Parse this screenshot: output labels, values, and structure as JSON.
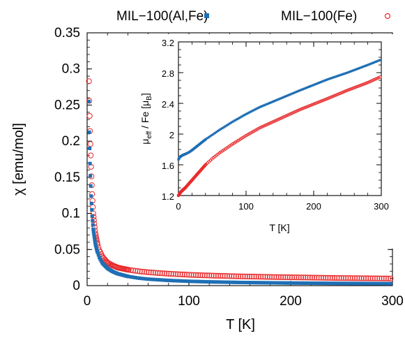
{
  "chart_data": [
    {
      "type": "scatter",
      "xlabel": "T [K]",
      "ylabel": "χ [emu/mol]",
      "xlim": [
        0,
        300
      ],
      "ylim": [
        0,
        0.35
      ],
      "xticks": [
        "0",
        "100",
        "200",
        "300"
      ],
      "yticks": [
        "0",
        "0.05",
        "0.1",
        "0.15",
        "0.2",
        "0.25",
        "0.3",
        "0.35"
      ],
      "legend_placement": "top",
      "grid": false,
      "series": [
        {
          "name": "MIL−100(Al,Fe)",
          "marker": "filled-square",
          "color": "#1f6fb4",
          "x": [
            1.8,
            2,
            2.5,
            3,
            4,
            5,
            6,
            8,
            10,
            12,
            15,
            20,
            25,
            30,
            40,
            50,
            60,
            80,
            100,
            120,
            150,
            200,
            250,
            300
          ],
          "y": [
            0.255,
            0.222,
            0.19,
            0.16,
            0.12,
            0.095,
            0.078,
            0.058,
            0.047,
            0.039,
            0.031,
            0.024,
            0.0195,
            0.0165,
            0.0128,
            0.0105,
            0.009,
            0.0072,
            0.006,
            0.0052,
            0.0044,
            0.0036,
            0.0031,
            0.0028
          ]
        },
        {
          "name": "MIL−100(Fe)",
          "marker": "open-circle",
          "color": "#e8282a",
          "x": [
            1.8,
            2,
            2.5,
            3,
            4,
            5,
            6,
            8,
            10,
            12,
            15,
            20,
            25,
            30,
            40,
            50,
            60,
            80,
            100,
            120,
            150,
            200,
            250,
            300
          ],
          "y": [
            0.283,
            0.265,
            0.235,
            0.205,
            0.16,
            0.125,
            0.1,
            0.073,
            0.058,
            0.049,
            0.04,
            0.032,
            0.028,
            0.025,
            0.022,
            0.02,
            0.0185,
            0.0165,
            0.015,
            0.014,
            0.0128,
            0.0115,
            0.0105,
            0.0098
          ]
        }
      ]
    },
    {
      "type": "line",
      "xlabel": "T [K]",
      "ylabel": "μ_eff / Fe [μ_B]",
      "xlim": [
        0,
        300
      ],
      "ylim": [
        1.2,
        3.2
      ],
      "xticks": [
        "0",
        "100",
        "200",
        "300"
      ],
      "yticks": [
        "1.2",
        "1.6",
        "2",
        "2.4",
        "2.8",
        "3.2"
      ],
      "legend_placement": "none",
      "grid": false,
      "series": [
        {
          "name": "MIL−100(Al,Fe)",
          "marker": "filled-square",
          "color": "#1f6fb4",
          "x": [
            0,
            2,
            5,
            10,
            15,
            20,
            30,
            40,
            50,
            60,
            80,
            100,
            120,
            150,
            180,
            200,
            220,
            250,
            280,
            300
          ],
          "y": [
            1.67,
            1.7,
            1.72,
            1.74,
            1.76,
            1.79,
            1.86,
            1.93,
            1.99,
            2.05,
            2.16,
            2.26,
            2.35,
            2.46,
            2.57,
            2.64,
            2.71,
            2.8,
            2.9,
            2.97
          ]
        },
        {
          "name": "MIL−100(Fe)",
          "marker": "open-circle",
          "color": "#e8282a",
          "x": [
            0,
            2,
            5,
            10,
            15,
            20,
            30,
            40,
            50,
            60,
            80,
            100,
            120,
            150,
            180,
            200,
            220,
            250,
            280,
            300
          ],
          "y": [
            1.2,
            1.23,
            1.26,
            1.3,
            1.35,
            1.4,
            1.5,
            1.6,
            1.68,
            1.75,
            1.87,
            1.98,
            2.08,
            2.2,
            2.32,
            2.39,
            2.46,
            2.57,
            2.67,
            2.75
          ]
        }
      ]
    }
  ]
}
